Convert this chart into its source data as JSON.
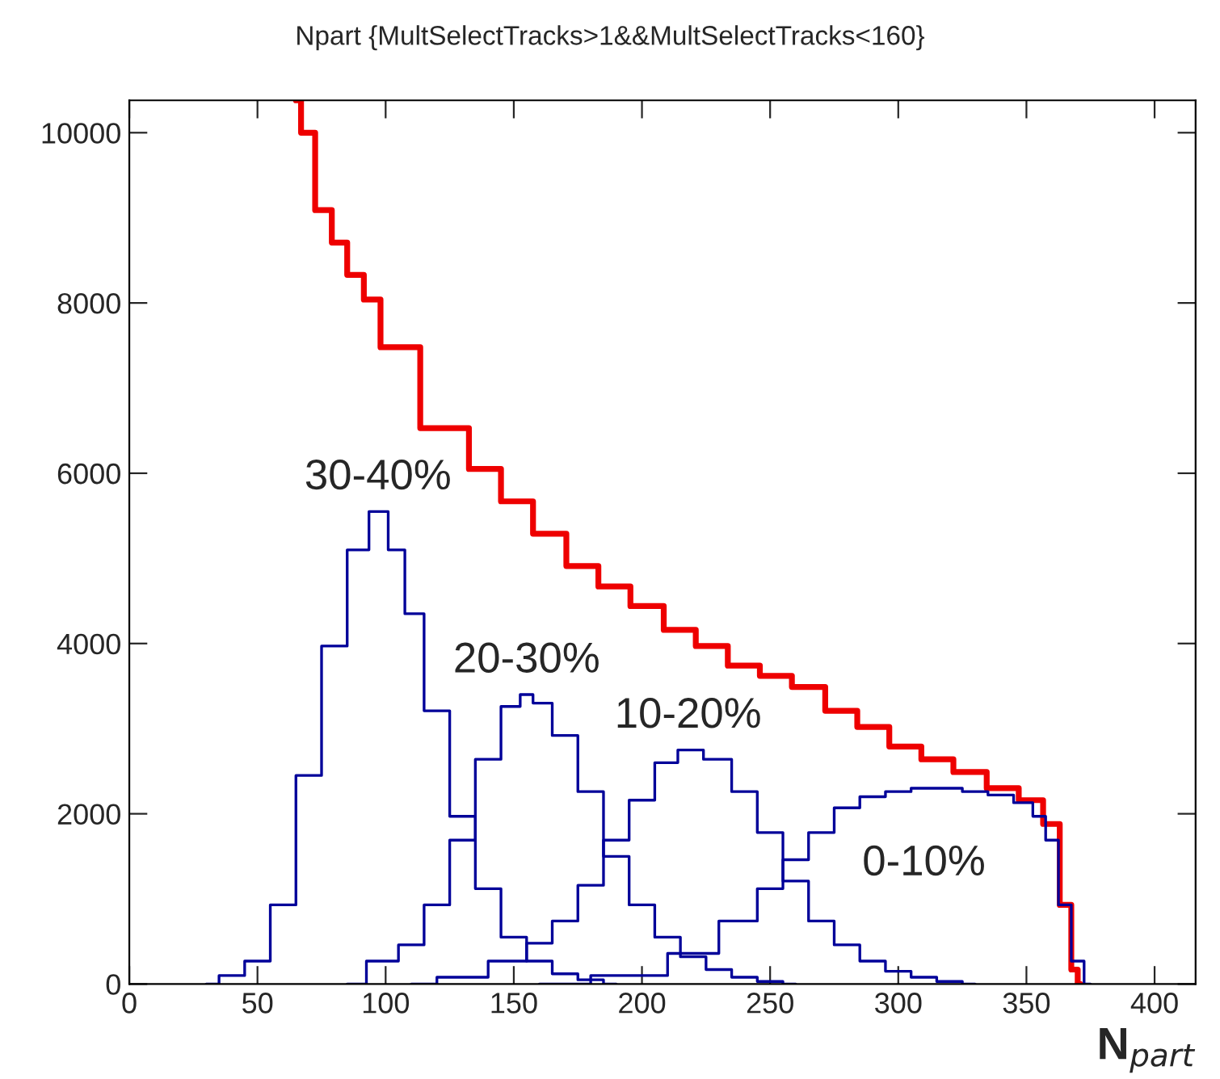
{
  "chart_data": {
    "type": "step",
    "title": "Npart {MultSelectTracks>1&&MultSelectTracks<160}",
    "xlabel": "N$_{part}$",
    "xlim": [
      0,
      416
    ],
    "ylim": [
      0,
      10380
    ],
    "xticks": [
      0,
      50,
      100,
      150,
      200,
      250,
      300,
      350,
      400
    ],
    "yticks": [
      0,
      2000,
      4000,
      6000,
      8000,
      10000
    ],
    "grid": false,
    "legend": false,
    "series": [
      {
        "color": "#ee0000",
        "x": [
          65,
          69,
          76,
          82,
          88,
          95,
          101,
          126,
          139,
          151,
          164,
          177,
          189,
          202,
          215,
          227,
          240,
          252,
          265,
          278,
          290,
          303,
          315,
          328,
          341,
          353,
          360,
          366,
          369,
          371
        ],
        "values": [
          10380,
          10000,
          9090,
          8710,
          8330,
          8040,
          7480,
          6530,
          6050,
          5670,
          5290,
          4910,
          4670,
          4440,
          4160,
          3970,
          3740,
          3620,
          3490,
          3210,
          3020,
          2790,
          2640,
          2490,
          2300,
          2160,
          1880,
          930,
          170,
          0
        ]
      },
      {
        "name": "30-40%",
        "color": "#000099",
        "x": [
          30,
          40,
          50,
          60,
          70,
          80,
          90,
          97,
          105,
          110,
          120,
          130,
          140,
          150,
          160,
          170,
          180,
          190
        ],
        "values": [
          0,
          100,
          270,
          930,
          2450,
          3970,
          5100,
          5550,
          5100,
          4350,
          3210,
          1970,
          1120,
          550,
          270,
          120,
          50,
          0
        ]
      },
      {
        "name": "20-30%",
        "color": "#000099",
        "x": [
          85,
          100,
          110,
          120,
          130,
          140,
          150,
          155,
          160,
          170,
          180,
          190,
          200,
          210,
          220,
          230,
          240,
          250,
          260
        ],
        "values": [
          0,
          270,
          460,
          930,
          1690,
          2640,
          3260,
          3400,
          3300,
          2920,
          2260,
          1500,
          930,
          550,
          320,
          170,
          80,
          30,
          0
        ]
      },
      {
        "name": "10-20%",
        "color": "#000099",
        "x": [
          110,
          130,
          150,
          160,
          170,
          180,
          190,
          200,
          210,
          218,
          230,
          240,
          250,
          260,
          270,
          280,
          290,
          300,
          310,
          320,
          330
        ],
        "values": [
          0,
          80,
          270,
          480,
          740,
          1160,
          1690,
          2160,
          2600,
          2750,
          2640,
          2260,
          1780,
          1210,
          740,
          460,
          270,
          150,
          80,
          30,
          0
        ]
      },
      {
        "name": "0-10%",
        "color": "#000099",
        "x": [
          160,
          200,
          220,
          240,
          250,
          260,
          270,
          280,
          290,
          300,
          310,
          320,
          330,
          340,
          350,
          355,
          360,
          365,
          370,
          375
        ],
        "values": [
          0,
          100,
          360,
          740,
          1120,
          1460,
          1780,
          2070,
          2200,
          2260,
          2300,
          2300,
          2260,
          2220,
          2130,
          1970,
          1690,
          930,
          270,
          0
        ]
      }
    ]
  }
}
